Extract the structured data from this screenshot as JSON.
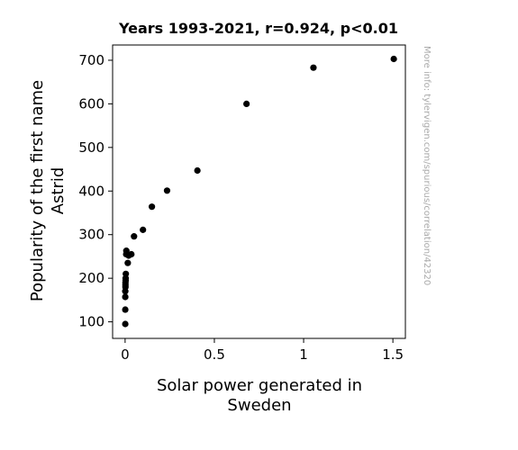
{
  "chart_data": {
    "type": "scatter",
    "title": "Years 1993-2021, r=0.924, p<0.01",
    "xlabel_lines": [
      "Solar power generated in",
      "Sweden"
    ],
    "ylabel_lines": [
      "Popularity of the first name",
      "Astrid"
    ],
    "watermark": "More info: tylervigen.com/spurious/correlation/42320",
    "xlim": [
      -0.07,
      1.57
    ],
    "ylim": [
      62,
      735
    ],
    "xticks": [
      0,
      0.5,
      1,
      1.5
    ],
    "xtick_labels": [
      "0",
      "0.5",
      "1",
      "1.5"
    ],
    "yticks": [
      100,
      200,
      300,
      400,
      500,
      600,
      700
    ],
    "ytick_labels": [
      "100",
      "200",
      "300",
      "400",
      "500",
      "600",
      "700"
    ],
    "marker_color": "#000000",
    "grid": false,
    "points": [
      {
        "x": 0.001,
        "y": 95
      },
      {
        "x": 0.001,
        "y": 128
      },
      {
        "x": 0.001,
        "y": 157
      },
      {
        "x": 0.001,
        "y": 170
      },
      {
        "x": 0.002,
        "y": 180
      },
      {
        "x": 0.002,
        "y": 185
      },
      {
        "x": 0.002,
        "y": 190
      },
      {
        "x": 0.003,
        "y": 195
      },
      {
        "x": 0.003,
        "y": 200
      },
      {
        "x": 0.004,
        "y": 210
      },
      {
        "x": 0.006,
        "y": 255
      },
      {
        "x": 0.007,
        "y": 263
      },
      {
        "x": 0.015,
        "y": 235
      },
      {
        "x": 0.02,
        "y": 252
      },
      {
        "x": 0.035,
        "y": 255
      },
      {
        "x": 0.05,
        "y": 296
      },
      {
        "x": 0.1,
        "y": 311
      },
      {
        "x": 0.15,
        "y": 364
      },
      {
        "x": 0.235,
        "y": 401
      },
      {
        "x": 0.405,
        "y": 447
      },
      {
        "x": 0.68,
        "y": 600
      },
      {
        "x": 1.055,
        "y": 683
      },
      {
        "x": 1.505,
        "y": 703
      }
    ]
  }
}
